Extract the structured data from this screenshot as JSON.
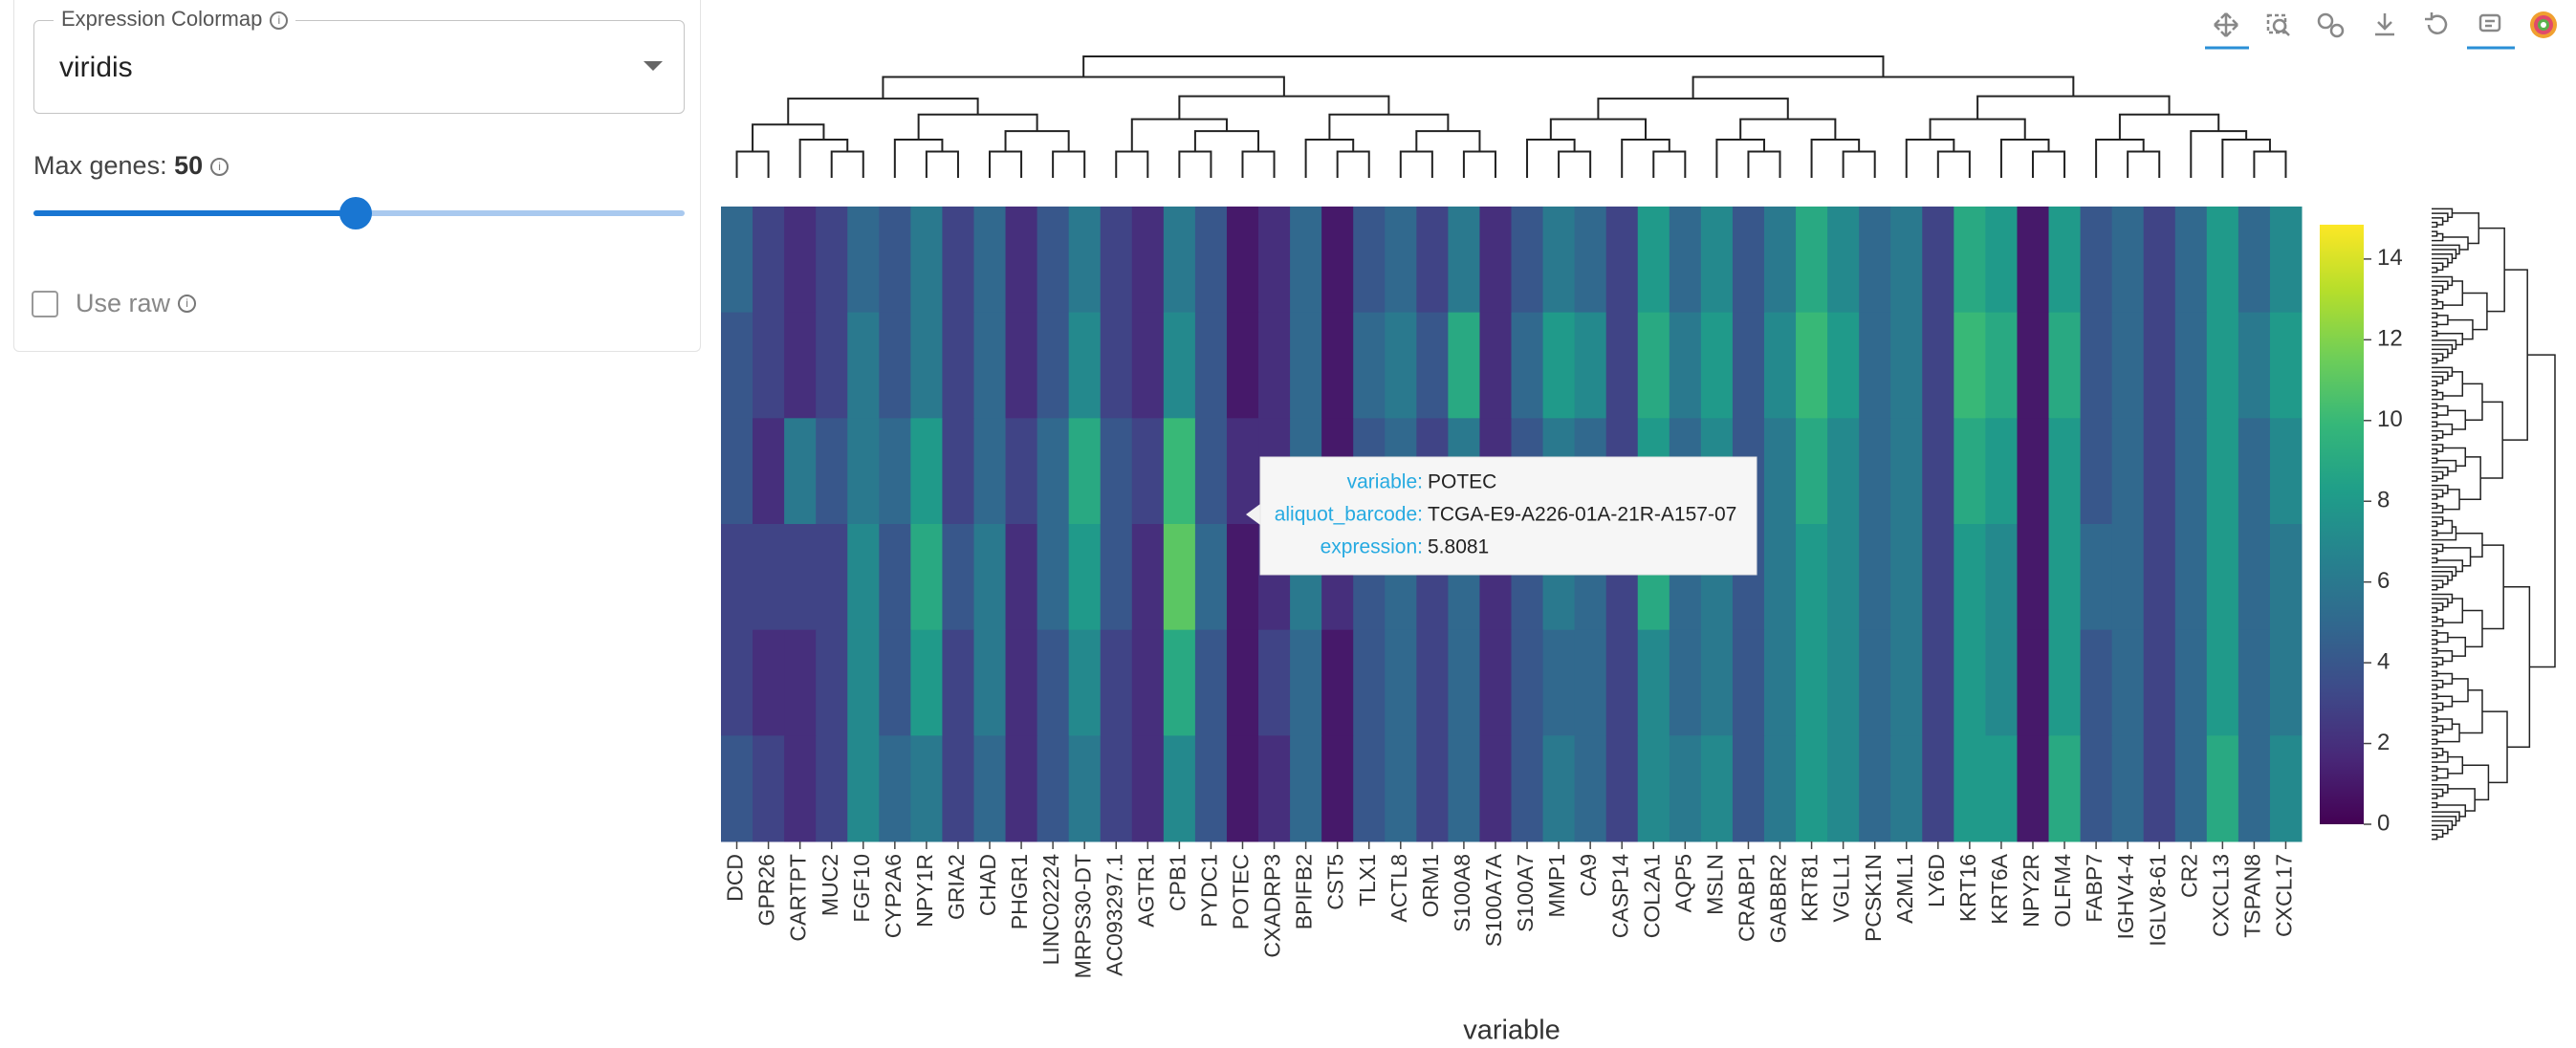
{
  "controls": {
    "colormap": {
      "label": "Expression Colormap",
      "value": "viridis"
    },
    "max_genes": {
      "label": "Max genes:",
      "value": 50
    },
    "use_raw": {
      "label": "Use raw"
    }
  },
  "tooltip": {
    "rows": [
      {
        "key": "variable:",
        "value": "POTEC"
      },
      {
        "key": "aliquot_barcode:",
        "value": "TCGA-E9-A226-01A-21R-A157-07"
      },
      {
        "key": "expression:",
        "value": "5.8081"
      }
    ]
  },
  "chart_data": {
    "type": "heatmap",
    "x_label": "variable",
    "categories": [
      "DCD",
      "GPR26",
      "CARTPT",
      "MUC2",
      "FGF10",
      "CYP2A6",
      "NPY1R",
      "GRIA2",
      "CHAD",
      "PHGR1",
      "LINC02224",
      "MRPS30-DT",
      "AC093297.1",
      "AGTR1",
      "CPB1",
      "PYDC1",
      "POTEC",
      "CXADRP3",
      "BPIFB2",
      "CST5",
      "TLX1",
      "ACTL8",
      "ORM1",
      "S100A8",
      "S100A7A",
      "S100A7",
      "MMP1",
      "CA9",
      "CASP14",
      "COL2A1",
      "AQP5",
      "MSLN",
      "CRABP1",
      "GABBR2",
      "KRT81",
      "VGLL1",
      "PCSK1N",
      "A2ML1",
      "LY6D",
      "KRT16",
      "KRT6A",
      "NPY2R",
      "OLFM4",
      "FABP7",
      "IGHV4-4",
      "IGLV8-61",
      "CR2",
      "CXCL13",
      "TSPAN8",
      "CXCL17"
    ],
    "values": [
      [
        5,
        3,
        2,
        3,
        5,
        4,
        6,
        3,
        5,
        2,
        4,
        6,
        3,
        2,
        6,
        4,
        1,
        2,
        5,
        1,
        4,
        5,
        3,
        6,
        2,
        4,
        6,
        5,
        3,
        8,
        5,
        7,
        4,
        6,
        9,
        7,
        5,
        6,
        3,
        9,
        8,
        1,
        8,
        4,
        5,
        3,
        5,
        8,
        5,
        7
      ],
      [
        4,
        3,
        2,
        3,
        6,
        4,
        6,
        3,
        5,
        2,
        4,
        7,
        3,
        2,
        7,
        4,
        1,
        2,
        5,
        1,
        5,
        6,
        4,
        9,
        2,
        5,
        8,
        7,
        3,
        9,
        6,
        8,
        4,
        7,
        10,
        8,
        5,
        6,
        3,
        10,
        9,
        1,
        9,
        4,
        5,
        3,
        5,
        8,
        6,
        8
      ],
      [
        4,
        2,
        6,
        4,
        6,
        5,
        8,
        3,
        5,
        3,
        5,
        9,
        4,
        3,
        10,
        4,
        2,
        2,
        5,
        1,
        4,
        5,
        3,
        6,
        2,
        4,
        6,
        5,
        3,
        8,
        5,
        7,
        4,
        6,
        9,
        7,
        5,
        6,
        3,
        9,
        8,
        1,
        8,
        4,
        5,
        3,
        5,
        8,
        5,
        7
      ],
      [
        3,
        3,
        3,
        3,
        7,
        4,
        9,
        4,
        6,
        2,
        5,
        8,
        4,
        2,
        11,
        5,
        1,
        2,
        6,
        2,
        4,
        5,
        3,
        5,
        2,
        4,
        6,
        5,
        3,
        9,
        5,
        6,
        4,
        6,
        8,
        7,
        5,
        6,
        3,
        8,
        7,
        1,
        8,
        5,
        5,
        3,
        5,
        8,
        5,
        6
      ],
      [
        3,
        2,
        2,
        3,
        7,
        4,
        8,
        3,
        6,
        2,
        4,
        7,
        3,
        2,
        9,
        4,
        1,
        3,
        5,
        1,
        4,
        5,
        3,
        5,
        2,
        4,
        5,
        5,
        3,
        7,
        5,
        6,
        4,
        6,
        8,
        7,
        5,
        6,
        3,
        8,
        7,
        1,
        8,
        4,
        5,
        3,
        5,
        8,
        5,
        6
      ],
      [
        4,
        3,
        2,
        3,
        7,
        5,
        6,
        3,
        5,
        2,
        4,
        6,
        3,
        2,
        7,
        4,
        1,
        2,
        5,
        1,
        4,
        5,
        3,
        5,
        2,
        4,
        6,
        5,
        3,
        7,
        6,
        7,
        4,
        6,
        8,
        7,
        5,
        6,
        3,
        8,
        8,
        1,
        9,
        4,
        5,
        3,
        5,
        9,
        5,
        7
      ]
    ],
    "colormap": "viridis",
    "clim": [
      0,
      14.85
    ],
    "cticks": [
      0,
      2,
      4,
      6,
      8,
      10,
      12,
      14
    ]
  }
}
